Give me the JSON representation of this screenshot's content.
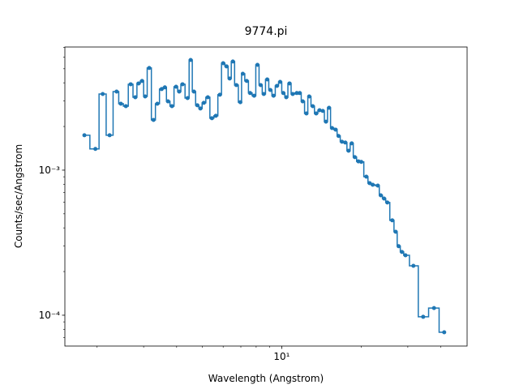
{
  "chart_data": {
    "type": "step",
    "title": "9774.pi",
    "xlabel": "Wavelength (Angstrom)",
    "ylabel": "Counts/sec/Angstrom",
    "xscale": "log",
    "yscale": "log",
    "color": "#1f77b4",
    "drawstyle": "steps-mid",
    "marker": true,
    "xlim": [
      1.51,
      50.3
    ],
    "ylim": [
      6.13e-05,
      0.00706
    ],
    "xticks": [
      {
        "value": 10,
        "label": "10¹"
      }
    ],
    "yticks": [
      {
        "value": 0.0001,
        "label": "10⁻⁴"
      },
      {
        "value": 0.001,
        "label": "10⁻³"
      }
    ],
    "xminor_ticks": [
      2,
      3,
      4,
      5,
      6,
      7,
      8,
      9,
      20,
      30,
      40
    ],
    "yminor_ticks": [
      7e-05,
      8e-05,
      9e-05,
      0.0002,
      0.0003,
      0.0004,
      0.0005,
      0.0006,
      0.0007,
      0.0008,
      0.0009,
      0.002,
      0.003,
      0.004,
      0.005,
      0.006,
      0.007
    ],
    "x": [
      1.79,
      1.97,
      2.1,
      2.23,
      2.37,
      2.46,
      2.57,
      2.68,
      2.79,
      2.87,
      2.96,
      3.04,
      3.15,
      3.27,
      3.38,
      3.51,
      3.61,
      3.71,
      3.84,
      3.98,
      4.09,
      4.21,
      4.4,
      4.52,
      4.65,
      4.79,
      4.92,
      5.07,
      5.25,
      5.44,
      5.63,
      5.83,
      6.0,
      6.18,
      6.35,
      6.53,
      6.73,
      6.97,
      7.12,
      7.37,
      7.59,
      7.86,
      8.09,
      8.32,
      8.55,
      8.81,
      9.05,
      9.31,
      9.59,
      9.86,
      10.14,
      10.4,
      10.7,
      11.0,
      11.4,
      11.7,
      12.0,
      12.4,
      12.7,
      13.1,
      13.5,
      13.9,
      14.3,
      14.7,
      15.1,
      15.5,
      16.0,
      16.4,
      16.9,
      17.4,
      17.9,
      18.4,
      18.9,
      19.5,
      20.0,
      20.9,
      21.5,
      22.1,
      23.1,
      23.7,
      24.4,
      25.1,
      26.2,
      27.0,
      27.7,
      28.5,
      29.4,
      31.5,
      34.3,
      37.7,
      41.2
    ],
    "values": [
      0.00174,
      0.0014,
      0.00335,
      0.00174,
      0.00348,
      0.00287,
      0.00276,
      0.00391,
      0.00318,
      0.00396,
      0.00412,
      0.00322,
      0.00506,
      0.00222,
      0.00287,
      0.00362,
      0.00372,
      0.00298,
      0.00276,
      0.00376,
      0.00348,
      0.00391,
      0.00314,
      0.00575,
      0.00348,
      0.0028,
      0.00266,
      0.00291,
      0.00318,
      0.00228,
      0.00237,
      0.00331,
      0.00546,
      0.00519,
      0.00428,
      0.00561,
      0.00386,
      0.00294,
      0.00462,
      0.00412,
      0.0034,
      0.00326,
      0.00532,
      0.00386,
      0.00335,
      0.00422,
      0.00357,
      0.00326,
      0.00381,
      0.00406,
      0.0034,
      0.00318,
      0.00396,
      0.00335,
      0.0034,
      0.0034,
      0.00298,
      0.00246,
      0.00322,
      0.00276,
      0.00246,
      0.00259,
      0.00256,
      0.00216,
      0.00269,
      0.00195,
      0.0019,
      0.00172,
      0.00157,
      0.00155,
      0.00136,
      0.00153,
      0.00123,
      0.00115,
      0.00114,
      0.000902,
      0.000814,
      0.000793,
      0.000783,
      0.000671,
      0.000637,
      0.000598,
      0.000451,
      0.000376,
      0.000299,
      0.000273,
      0.000259,
      0.000219,
      9.75e-05,
      0.000112,
      7.63e-05
    ]
  }
}
